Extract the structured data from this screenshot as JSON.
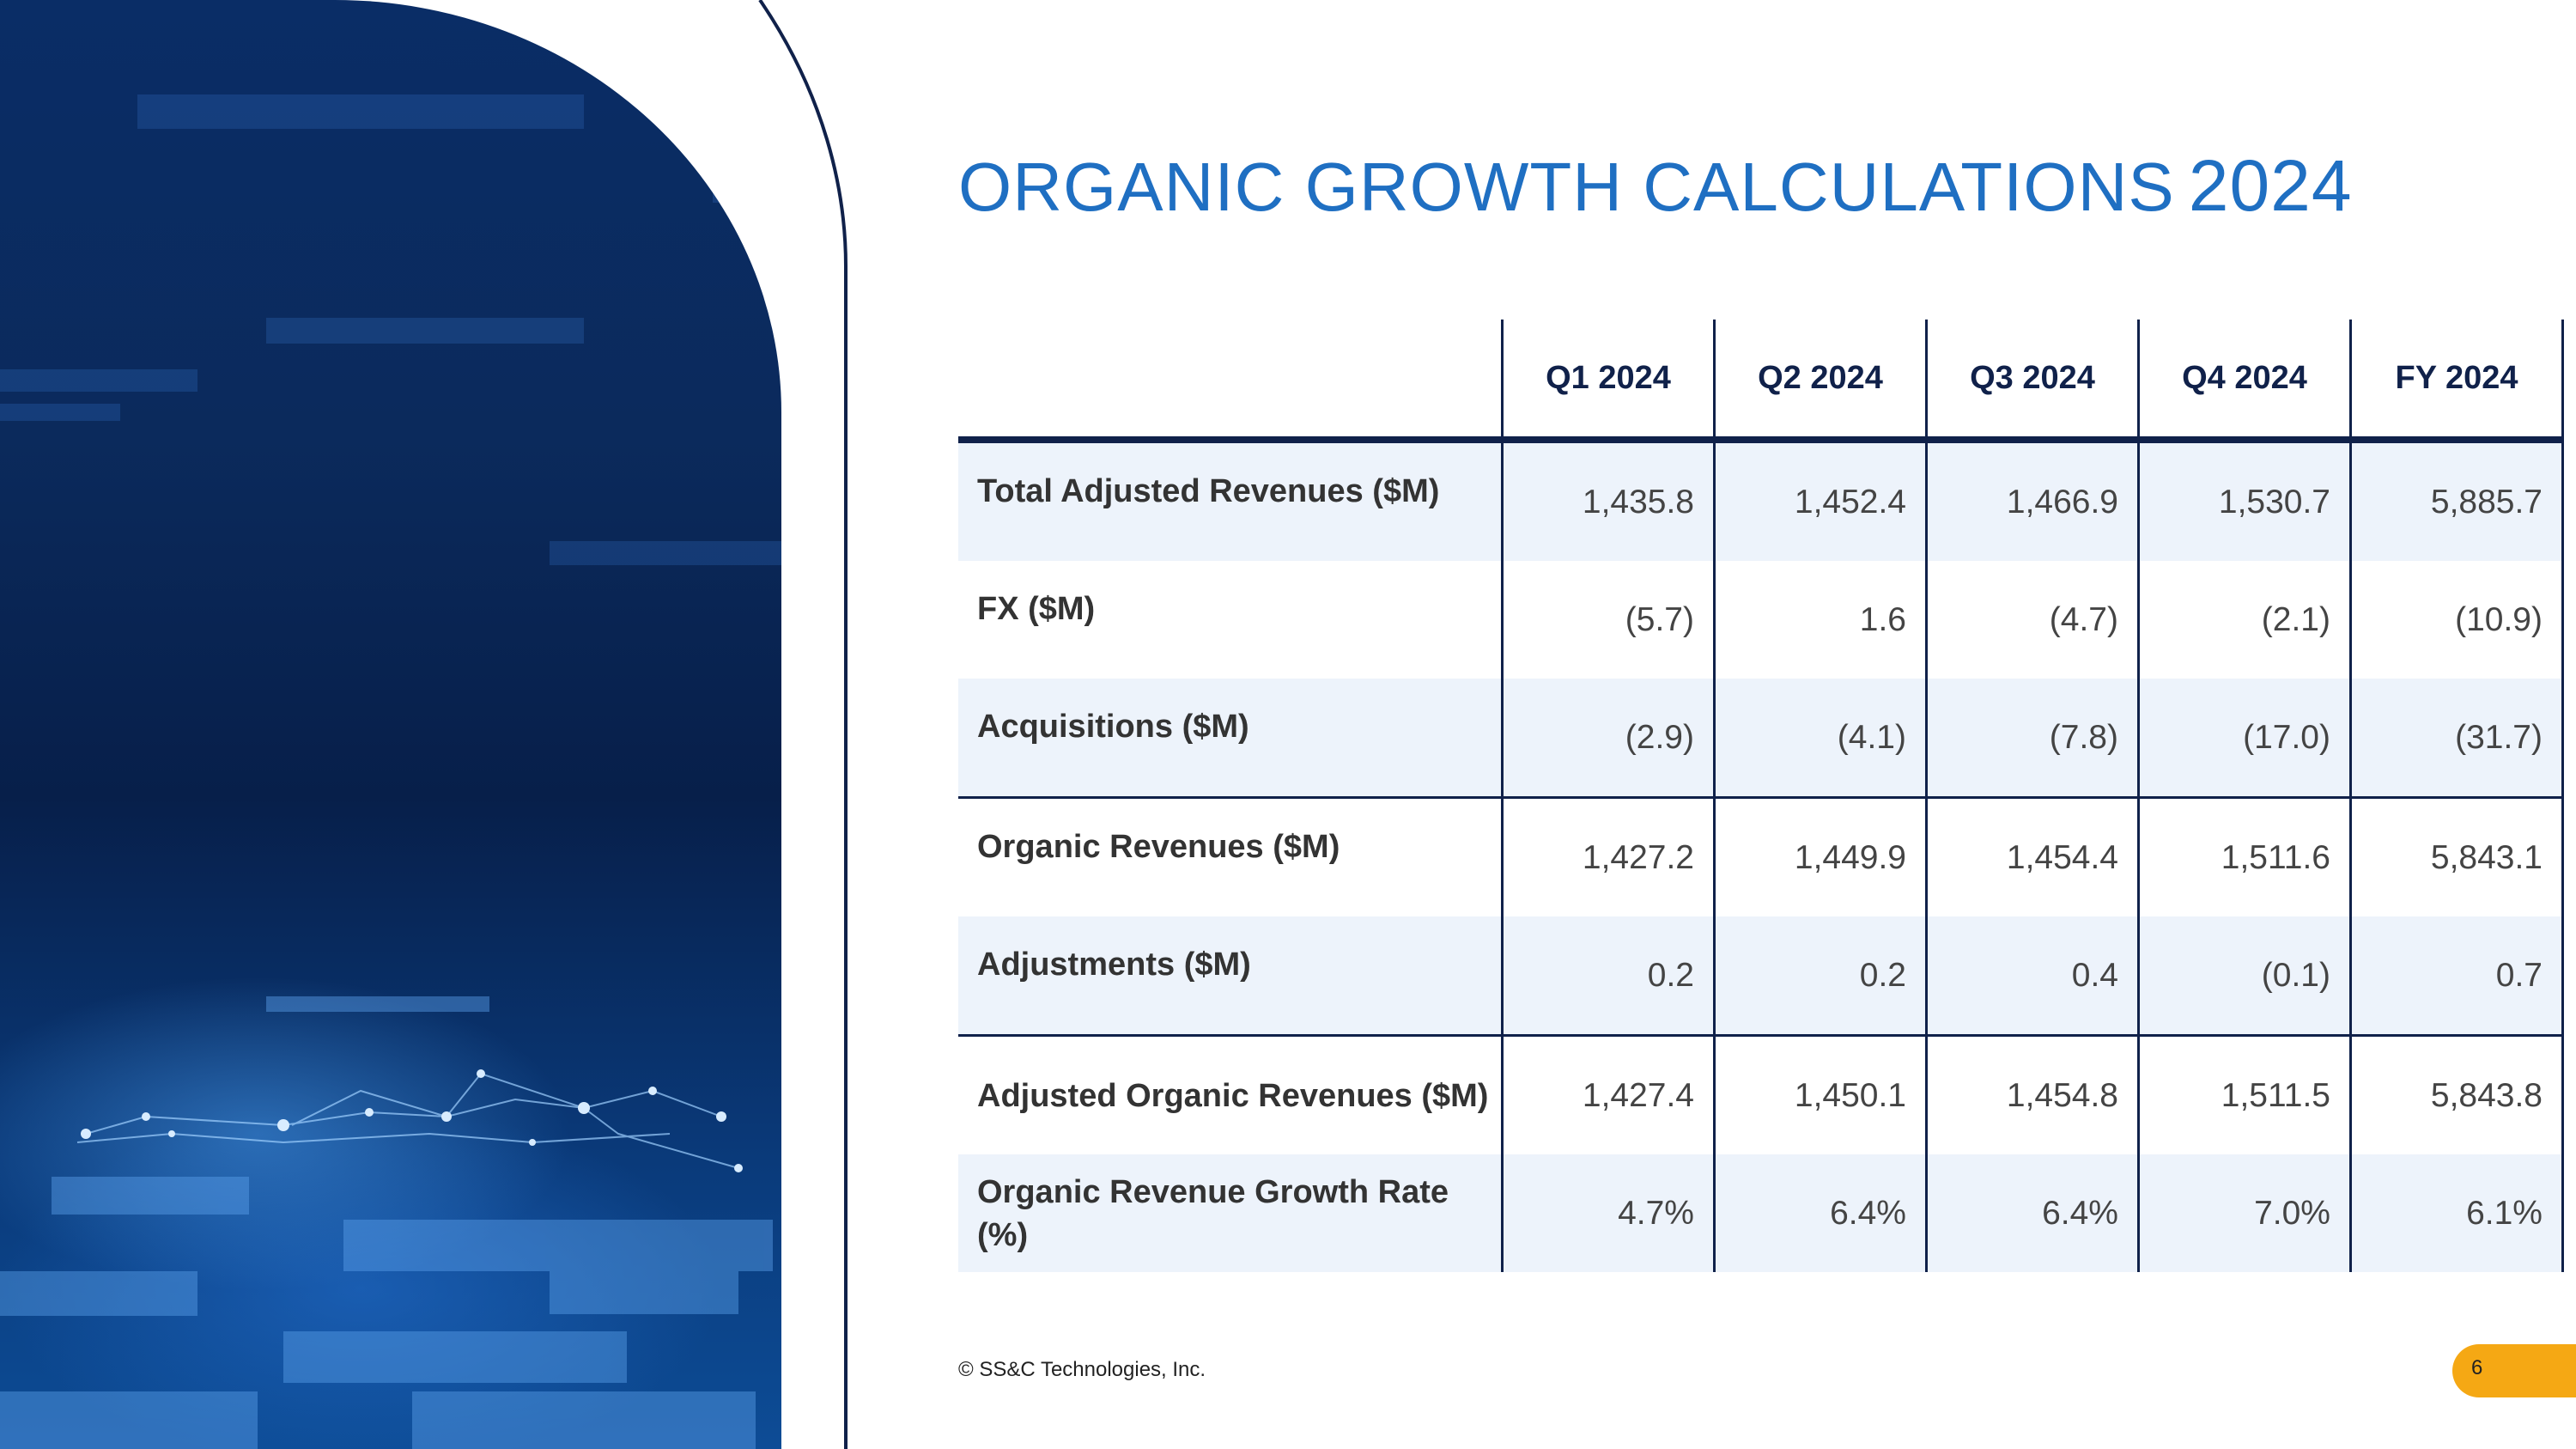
{
  "slide": {
    "title": "ORGANIC GROWTH CALCULATIONS",
    "title_year": "2024",
    "footer": "© SS&C Technologies, Inc.",
    "page_number": "6"
  },
  "colors": {
    "title": "#1f6fc2",
    "table_rule": "#10214a",
    "row_shade": "#edf3fb",
    "page_badge": "#f5a814"
  },
  "table": {
    "columns": [
      "Q1 2024",
      "Q2 2024",
      "Q3 2024",
      "Q4 2024",
      "FY 2024"
    ],
    "rows": [
      {
        "label": "Total Adjusted Revenues ($M)",
        "values": [
          "1,435.8",
          "1,452.4",
          "1,466.9",
          "1,530.7",
          "5,885.7"
        ]
      },
      {
        "label": "FX ($M)",
        "values": [
          "(5.7)",
          "1.6",
          "(4.7)",
          "(2.1)",
          "(10.9)"
        ]
      },
      {
        "label": "Acquisitions ($M)",
        "values": [
          "(2.9)",
          "(4.1)",
          "(7.8)",
          "(17.0)",
          "(31.7)"
        ]
      },
      {
        "label": "Organic Revenues ($M)",
        "values": [
          "1,427.2",
          "1,449.9",
          "1,454.4",
          "1,511.6",
          "5,843.1"
        ]
      },
      {
        "label": "Adjustments ($M)",
        "values": [
          "0.2",
          "0.2",
          "0.4",
          "(0.1)",
          "0.7"
        ]
      },
      {
        "label": "Adjusted Organic Revenues ($M)",
        "values": [
          "1,427.4",
          "1,450.1",
          "1,454.8",
          "1,511.5",
          "5,843.8"
        ]
      },
      {
        "label": "Organic Revenue Growth Rate (%)",
        "values": [
          "4.7%",
          "6.4%",
          "6.4%",
          "7.0%",
          "6.1%"
        ]
      }
    ]
  }
}
